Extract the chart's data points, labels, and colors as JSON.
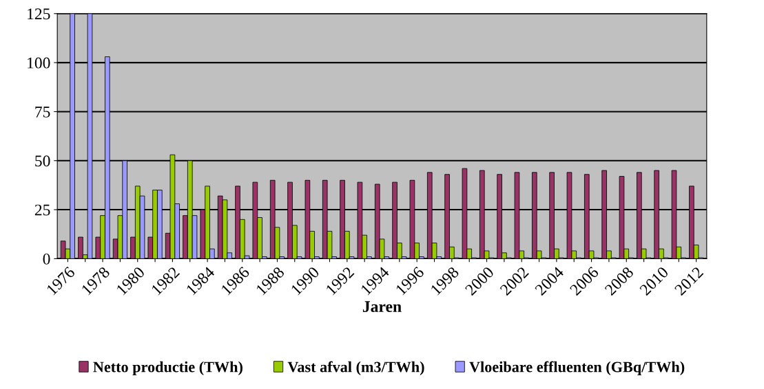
{
  "chart_data": {
    "type": "bar",
    "xlabel": "Jaren",
    "categories": [
      "1976",
      null,
      "1978",
      null,
      "1980",
      null,
      "1982",
      null,
      "1984",
      null,
      "1986",
      null,
      "1988",
      null,
      "1990",
      null,
      "1992",
      null,
      "1994",
      null,
      "1996",
      null,
      "1998",
      null,
      "2000",
      null,
      "2002",
      null,
      "2004",
      null,
      "2006",
      null,
      "2008",
      null,
      "2010",
      null,
      "2012"
    ],
    "series": [
      {
        "name": "Netto productie (TWh)",
        "color": "#993366",
        "values": [
          9,
          11,
          11,
          10,
          11,
          11,
          13,
          22,
          25,
          32,
          37,
          39,
          40,
          39,
          40,
          40,
          40,
          39,
          38,
          39,
          40,
          44,
          43,
          46,
          45,
          43,
          44,
          44,
          44,
          44,
          43,
          45,
          42,
          44,
          45,
          45,
          37
        ]
      },
      {
        "name": "Vast afval (m3/TWh)",
        "color": "#99cc00",
        "values": [
          5,
          2,
          22,
          22,
          37,
          35,
          53,
          50,
          37,
          30,
          20,
          21,
          16,
          17,
          14,
          14,
          14,
          12,
          10,
          8,
          8,
          8,
          6,
          5,
          4,
          3,
          4,
          4,
          5,
          4,
          4,
          4,
          5,
          5,
          5,
          6,
          7
        ]
      },
      {
        "name": "Vloeibare effluenten (GBq/TWh)",
        "color": "#9999ff",
        "values": [
          125,
          125,
          103,
          50,
          32,
          35,
          28,
          22,
          5,
          3,
          1.5,
          1,
          1,
          1,
          1,
          1,
          1,
          1,
          1,
          1,
          1,
          1,
          0.5,
          0.5,
          0.5,
          0.5,
          0.5,
          0.5,
          0.5,
          0.5,
          0.5,
          0.5,
          0.5,
          0.5,
          0.5,
          0.5,
          0.5
        ]
      }
    ],
    "ylim": [
      0,
      125
    ],
    "yticks": [
      0,
      25,
      50,
      75,
      100,
      125
    ],
    "grid": "y",
    "legend": "bottom"
  }
}
